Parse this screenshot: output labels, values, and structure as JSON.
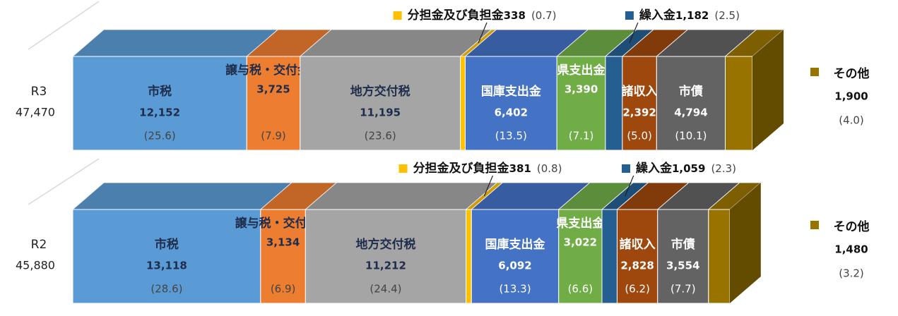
{
  "chart_data": {
    "type": "stacked-bar-3d",
    "categories": [
      "R3",
      "R2"
    ],
    "totals": [
      47470,
      45880
    ],
    "total_labels": [
      "47,470",
      "45,880"
    ],
    "xlim": [
      0,
      47470
    ],
    "series": [
      {
        "name": "市税",
        "color": "#5b9bd5",
        "text_color": "#1f2d4d",
        "label_position": "inside",
        "values": [
          12152,
          13118
        ],
        "value_labels": [
          "12,152",
          "13,118"
        ],
        "shares": [
          25.6,
          28.6
        ],
        "share_labels": [
          "(25.6)",
          "(28.6)"
        ]
      },
      {
        "name": "譲与税・交付金等",
        "color": "#ed7d31",
        "text_color": "#1f2d4d",
        "label_position": "inside-high",
        "values": [
          3725,
          3134
        ],
        "value_labels": [
          "3,725",
          "3,134"
        ],
        "shares": [
          7.9,
          6.9
        ],
        "share_labels": [
          "(7.9)",
          "(6.9)"
        ]
      },
      {
        "name": "地方交付税",
        "color": "#a5a5a5",
        "text_color": "#1f2d4d",
        "label_position": "inside",
        "values": [
          11195,
          11212
        ],
        "value_labels": [
          "11,195",
          "11,212"
        ],
        "shares": [
          23.6,
          24.4
        ],
        "share_labels": [
          "(23.6)",
          "(24.4)"
        ]
      },
      {
        "name": "分担金及び負担金",
        "color": "#ffc000",
        "text_color": "#111111",
        "label_position": "callout",
        "values": [
          338,
          381
        ],
        "shares": [
          0.7,
          0.8
        ],
        "share_labels": [
          "(0.7)",
          "(0.8)"
        ]
      },
      {
        "name": "国庫支出金",
        "color": "#4472c4",
        "text_color": "#ffffff",
        "label_position": "inside",
        "values": [
          6402,
          6092
        ],
        "value_labels": [
          "6,402",
          "6,092"
        ],
        "shares": [
          13.5,
          13.3
        ],
        "share_labels": [
          "(13.5)",
          "(13.3)"
        ]
      },
      {
        "name": "県支出金",
        "color": "#70ad47",
        "text_color": "#ffffff",
        "label_position": "inside-high",
        "values": [
          3390,
          3022
        ],
        "value_labels": [
          "3,390",
          "3,022"
        ],
        "shares": [
          7.1,
          6.6
        ],
        "share_labels": [
          "(7.1)",
          "(6.6)"
        ]
      },
      {
        "name": "繰入金",
        "color": "#255e91",
        "text_color": "#111111",
        "label_position": "callout",
        "values": [
          1182,
          1059
        ],
        "value_labels": [
          "1,182",
          "1,059"
        ],
        "shares": [
          2.5,
          2.3
        ],
        "share_labels": [
          "(2.5)",
          "(2.3)"
        ]
      },
      {
        "name": "諸収入",
        "color": "#9e480e",
        "text_color": "#ffffff",
        "label_position": "inside",
        "values": [
          2392,
          2828
        ],
        "value_labels": [
          "2,392",
          "2,828"
        ],
        "shares": [
          5.0,
          6.2
        ],
        "share_labels": [
          "(5.0)",
          "(6.2)"
        ]
      },
      {
        "name": "市債",
        "color": "#636363",
        "text_color": "#ffffff",
        "label_position": "inside",
        "values": [
          4794,
          3554
        ],
        "value_labels": [
          "4,794",
          "3,554"
        ],
        "shares": [
          10.1,
          7.7
        ],
        "share_labels": [
          "(10.1)",
          "(7.7)"
        ]
      },
      {
        "name": "その他",
        "color": "#997300",
        "text_color": "#111111",
        "label_position": "outside",
        "values": [
          1900,
          1480
        ],
        "value_labels": [
          "1,900",
          "1,480"
        ],
        "shares": [
          4.0,
          3.2
        ],
        "share_labels": [
          "(4.0)",
          "(3.2)"
        ]
      }
    ]
  }
}
